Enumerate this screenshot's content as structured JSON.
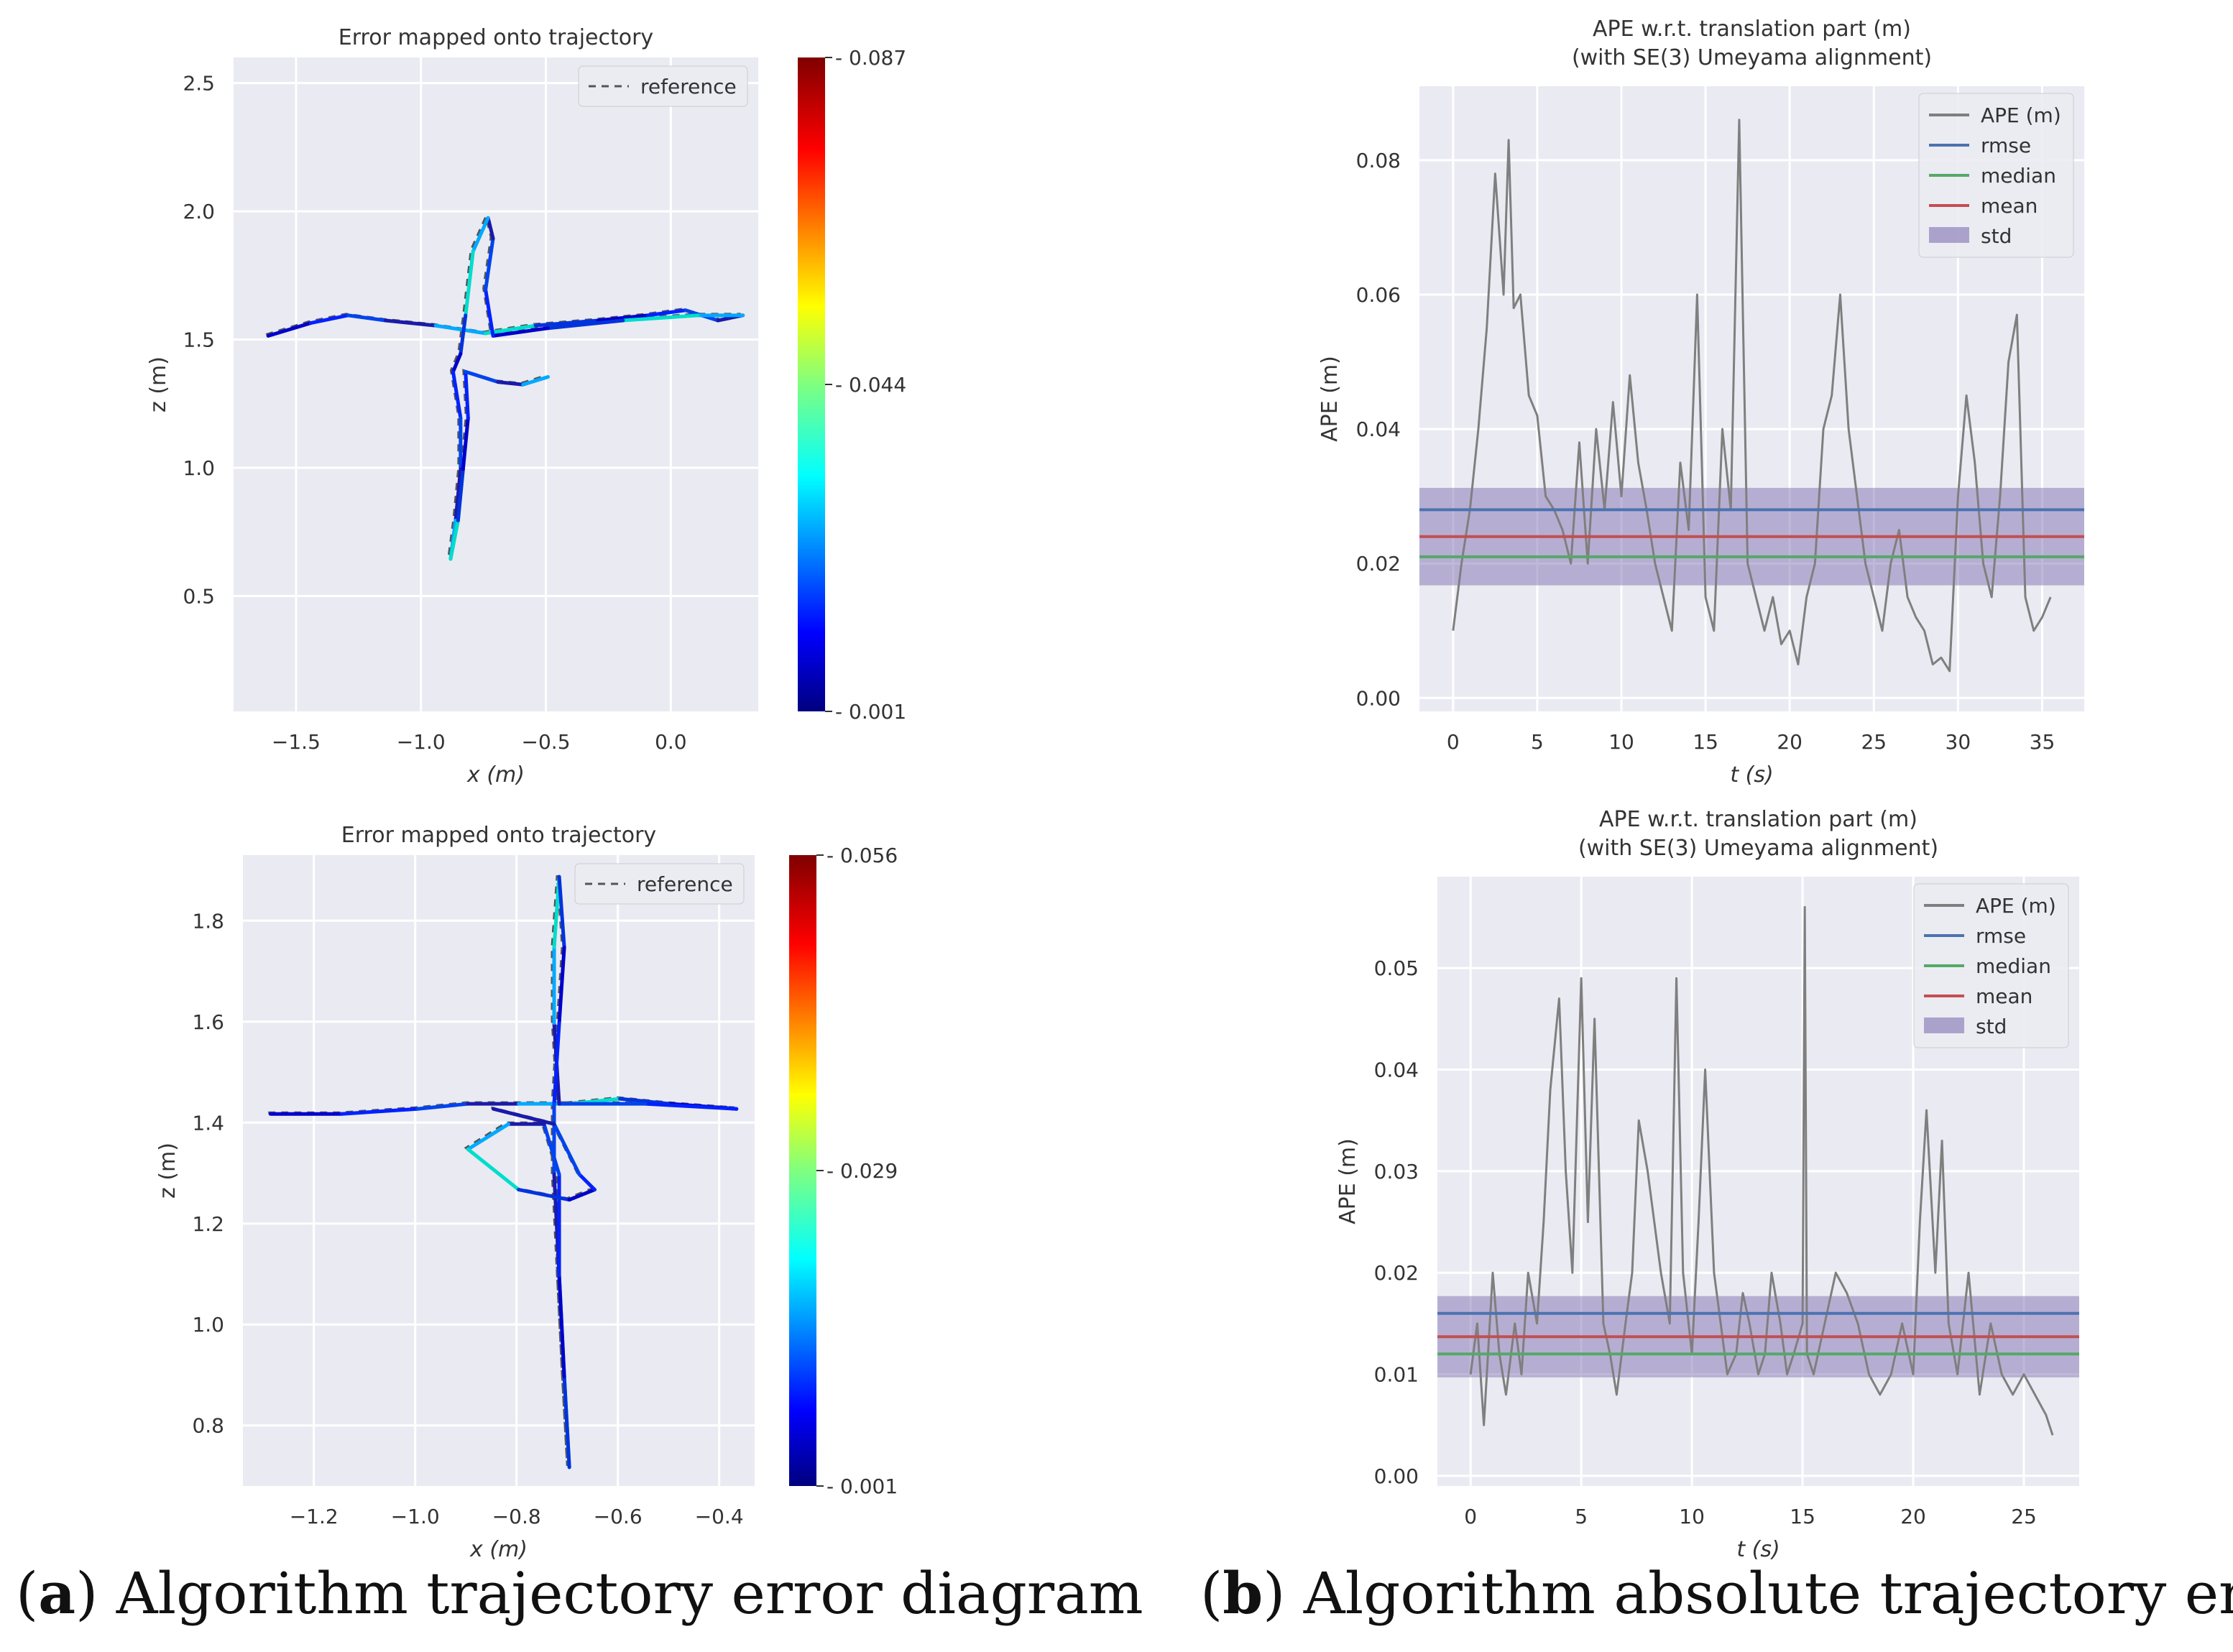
{
  "colors": {
    "plot_bg": "#eaeaf2",
    "grid": "#ffffff",
    "ape": "#7f7f7f",
    "rmse": "#4c72b0",
    "median": "#55a868",
    "mean": "#c44e52",
    "std": "#8172b2",
    "reference": "#555555"
  },
  "captions": {
    "a": {
      "letter": "a",
      "text": " Algorithm trajectory error diagram",
      "open": "(",
      "close": ")"
    },
    "b": {
      "letter": "b",
      "text": " Algorithm absolute trajectory error",
      "open": "(",
      "close": ")"
    }
  },
  "chart_data": [
    {
      "id": "traj-top",
      "type": "line",
      "title": "Error mapped onto trajectory",
      "xlabel": "x (m)",
      "ylabel": "z (m)",
      "xlim": [
        -1.75,
        0.35
      ],
      "ylim": [
        0.05,
        2.6
      ],
      "xticks": [
        -1.5,
        -1.0,
        -0.5,
        0.0
      ],
      "xtick_labels": [
        "−1.5",
        "−1.0",
        "−0.5",
        "0.0"
      ],
      "yticks": [
        0.5,
        1.0,
        1.5,
        2.0,
        2.5
      ],
      "ytick_labels": [
        "0.5",
        "1.0",
        "1.5",
        "2.0",
        "2.5"
      ],
      "legend": [
        "reference"
      ],
      "colorbar": {
        "min_label": "0.001",
        "mid_label": "0.044",
        "max_label": "0.087"
      },
      "trajectory": [
        [
          -1.62,
          1.52
        ],
        [
          -1.45,
          1.57
        ],
        [
          -1.3,
          1.6
        ],
        [
          -1.15,
          1.58
        ],
        [
          -0.95,
          1.56
        ],
        [
          -0.75,
          1.53
        ],
        [
          -0.55,
          1.56
        ],
        [
          -0.3,
          1.58
        ],
        [
          -0.1,
          1.6
        ],
        [
          0.05,
          1.62
        ],
        [
          0.18,
          1.58
        ],
        [
          0.28,
          1.6
        ],
        [
          0.1,
          1.6
        ],
        [
          -0.2,
          1.58
        ],
        [
          -0.5,
          1.55
        ],
        [
          -0.72,
          1.52
        ],
        [
          -0.75,
          1.7
        ],
        [
          -0.72,
          1.9
        ],
        [
          -0.74,
          1.98
        ],
        [
          -0.8,
          1.85
        ],
        [
          -0.83,
          1.6
        ],
        [
          -0.85,
          1.45
        ],
        [
          -0.88,
          1.38
        ],
        [
          -0.85,
          1.2
        ],
        [
          -0.85,
          1.0
        ],
        [
          -0.87,
          0.8
        ],
        [
          -0.89,
          0.65
        ],
        [
          -0.86,
          0.8
        ],
        [
          -0.84,
          1.0
        ],
        [
          -0.82,
          1.2
        ],
        [
          -0.83,
          1.38
        ],
        [
          -0.7,
          1.34
        ],
        [
          -0.6,
          1.33
        ],
        [
          -0.5,
          1.36
        ]
      ]
    },
    {
      "id": "ape-top",
      "type": "line",
      "title": "APE w.r.t. translation part (m)",
      "subtitle": "(with SE(3) Umeyama alignment)",
      "xlabel": "t (s)",
      "ylabel": "APE (m)",
      "xlim": [
        -2,
        37.5
      ],
      "ylim": [
        -0.002,
        0.091
      ],
      "xticks": [
        0,
        5,
        10,
        15,
        20,
        25,
        30,
        35
      ],
      "xtick_labels": [
        "0",
        "5",
        "10",
        "15",
        "20",
        "25",
        "30",
        "35"
      ],
      "yticks": [
        0.0,
        0.02,
        0.04,
        0.06,
        0.08
      ],
      "ytick_labels": [
        "0.00",
        "0.02",
        "0.04",
        "0.06",
        "0.08"
      ],
      "legend": [
        "APE (m)",
        "rmse",
        "median",
        "mean",
        "std"
      ],
      "stats": {
        "rmse": 0.028,
        "median": 0.021,
        "mean": 0.024,
        "std": 0.0145
      },
      "series": [
        {
          "name": "APE (m)",
          "t": [
            0,
            0.5,
            1,
            1.5,
            2,
            2.5,
            3,
            3.3,
            3.6,
            4,
            4.5,
            5,
            5.5,
            6,
            6.5,
            7,
            7.5,
            8,
            8.5,
            9,
            9.5,
            10,
            10.5,
            11,
            11.5,
            12,
            12.5,
            13,
            13.5,
            14,
            14.5,
            15,
            15.5,
            16,
            16.5,
            17,
            17.5,
            18,
            18.5,
            19,
            19.5,
            20,
            20.5,
            21,
            21.5,
            22,
            22.5,
            23,
            23.5,
            24,
            24.5,
            25,
            25.5,
            26,
            26.5,
            27,
            27.5,
            28,
            28.5,
            29,
            29.5,
            30,
            30.5,
            31,
            31.5,
            32,
            32.5,
            33,
            33.5,
            34,
            34.5,
            35,
            35.5
          ],
          "values": [
            0.01,
            0.02,
            0.028,
            0.04,
            0.055,
            0.078,
            0.06,
            0.083,
            0.058,
            0.06,
            0.045,
            0.042,
            0.03,
            0.028,
            0.025,
            0.02,
            0.038,
            0.02,
            0.04,
            0.028,
            0.044,
            0.03,
            0.048,
            0.035,
            0.028,
            0.02,
            0.015,
            0.01,
            0.035,
            0.025,
            0.06,
            0.015,
            0.01,
            0.04,
            0.028,
            0.086,
            0.02,
            0.015,
            0.01,
            0.015,
            0.008,
            0.01,
            0.005,
            0.015,
            0.02,
            0.04,
            0.045,
            0.06,
            0.04,
            0.03,
            0.02,
            0.015,
            0.01,
            0.02,
            0.025,
            0.015,
            0.012,
            0.01,
            0.005,
            0.006,
            0.004,
            0.03,
            0.045,
            0.035,
            0.02,
            0.015,
            0.03,
            0.05,
            0.057,
            0.015,
            0.01,
            0.012,
            0.015
          ]
        }
      ]
    },
    {
      "id": "traj-bottom",
      "type": "line",
      "title": "Error mapped onto trajectory",
      "xlabel": "x (m)",
      "ylabel": "z (m)",
      "xlim": [
        -1.34,
        -0.33
      ],
      "ylim": [
        0.68,
        1.93
      ],
      "xticks": [
        -1.2,
        -1.0,
        -0.8,
        -0.6,
        -0.4
      ],
      "xtick_labels": [
        "−1.2",
        "−1.0",
        "−0.8",
        "−0.6",
        "−0.4"
      ],
      "yticks": [
        0.8,
        1.0,
        1.2,
        1.4,
        1.6,
        1.8
      ],
      "ytick_labels": [
        "0.8",
        "1.0",
        "1.2",
        "1.4",
        "1.6",
        "1.8"
      ],
      "legend": [
        "reference"
      ],
      "colorbar": {
        "min_label": "0.001",
        "mid_label": "0.029",
        "max_label": "0.056"
      },
      "trajectory": [
        [
          -1.29,
          1.42
        ],
        [
          -1.15,
          1.42
        ],
        [
          -1.0,
          1.43
        ],
        [
          -0.9,
          1.44
        ],
        [
          -0.8,
          1.44
        ],
        [
          -0.7,
          1.44
        ],
        [
          -0.6,
          1.45
        ],
        [
          -0.5,
          1.44
        ],
        [
          -0.37,
          1.43
        ],
        [
          -0.55,
          1.44
        ],
        [
          -0.72,
          1.44
        ],
        [
          -0.73,
          1.6
        ],
        [
          -0.73,
          1.75
        ],
        [
          -0.72,
          1.89
        ],
        [
          -0.71,
          1.75
        ],
        [
          -0.72,
          1.6
        ],
        [
          -0.73,
          1.44
        ],
        [
          -0.73,
          1.3
        ],
        [
          -0.72,
          1.1
        ],
        [
          -0.71,
          0.9
        ],
        [
          -0.7,
          0.72
        ],
        [
          -0.71,
          0.9
        ],
        [
          -0.72,
          1.1
        ],
        [
          -0.72,
          1.3
        ],
        [
          -0.75,
          1.4
        ],
        [
          -0.82,
          1.4
        ],
        [
          -0.9,
          1.35
        ],
        [
          -0.8,
          1.27
        ],
        [
          -0.7,
          1.25
        ],
        [
          -0.65,
          1.27
        ],
        [
          -0.68,
          1.3
        ],
        [
          -0.73,
          1.4
        ],
        [
          -0.85,
          1.43
        ]
      ]
    },
    {
      "id": "ape-bottom",
      "type": "line",
      "title": "APE w.r.t. translation part (m)",
      "subtitle": "(with SE(3) Umeyama alignment)",
      "xlabel": "t (s)",
      "ylabel": "APE (m)",
      "xlim": [
        -1.5,
        27.5
      ],
      "ylim": [
        -0.001,
        0.059
      ],
      "xticks": [
        0,
        5,
        10,
        15,
        20,
        25
      ],
      "xtick_labels": [
        "0",
        "5",
        "10",
        "15",
        "20",
        "25"
      ],
      "yticks": [
        0.0,
        0.01,
        0.02,
        0.03,
        0.04,
        0.05
      ],
      "ytick_labels": [
        "0.00",
        "0.01",
        "0.02",
        "0.03",
        "0.04",
        "0.05"
      ],
      "legend": [
        "APE (m)",
        "rmse",
        "median",
        "mean",
        "std"
      ],
      "stats": {
        "rmse": 0.016,
        "median": 0.012,
        "mean": 0.0137,
        "std": 0.008
      },
      "series": [
        {
          "name": "APE (m)",
          "t": [
            0,
            0.3,
            0.6,
            1,
            1.3,
            1.6,
            2,
            2.3,
            2.6,
            3,
            3.3,
            3.6,
            4,
            4.3,
            4.6,
            5,
            5.3,
            5.6,
            6,
            6.3,
            6.6,
            7,
            7.3,
            7.6,
            8,
            8.3,
            8.6,
            9,
            9.3,
            9.6,
            10,
            10.3,
            10.6,
            11,
            11.3,
            11.6,
            12,
            12.3,
            12.6,
            13,
            13.3,
            13.6,
            14,
            14.3,
            14.6,
            15,
            15.1,
            15.2,
            15.5,
            16,
            16.5,
            17,
            17.5,
            18,
            18.5,
            19,
            19.5,
            20,
            20.3,
            20.6,
            21,
            21.3,
            21.6,
            22,
            22.5,
            23,
            23.5,
            24,
            24.5,
            25,
            25.5,
            26,
            26.3
          ],
          "values": [
            0.01,
            0.015,
            0.005,
            0.02,
            0.012,
            0.008,
            0.015,
            0.01,
            0.02,
            0.015,
            0.025,
            0.038,
            0.047,
            0.03,
            0.02,
            0.049,
            0.025,
            0.045,
            0.015,
            0.012,
            0.008,
            0.015,
            0.02,
            0.035,
            0.03,
            0.025,
            0.02,
            0.015,
            0.049,
            0.02,
            0.012,
            0.025,
            0.04,
            0.02,
            0.015,
            0.01,
            0.012,
            0.018,
            0.015,
            0.01,
            0.012,
            0.02,
            0.015,
            0.01,
            0.012,
            0.015,
            0.056,
            0.012,
            0.01,
            0.015,
            0.02,
            0.018,
            0.015,
            0.01,
            0.008,
            0.01,
            0.015,
            0.01,
            0.025,
            0.036,
            0.02,
            0.033,
            0.015,
            0.01,
            0.02,
            0.008,
            0.015,
            0.01,
            0.008,
            0.01,
            0.008,
            0.006,
            0.004
          ]
        }
      ]
    }
  ]
}
